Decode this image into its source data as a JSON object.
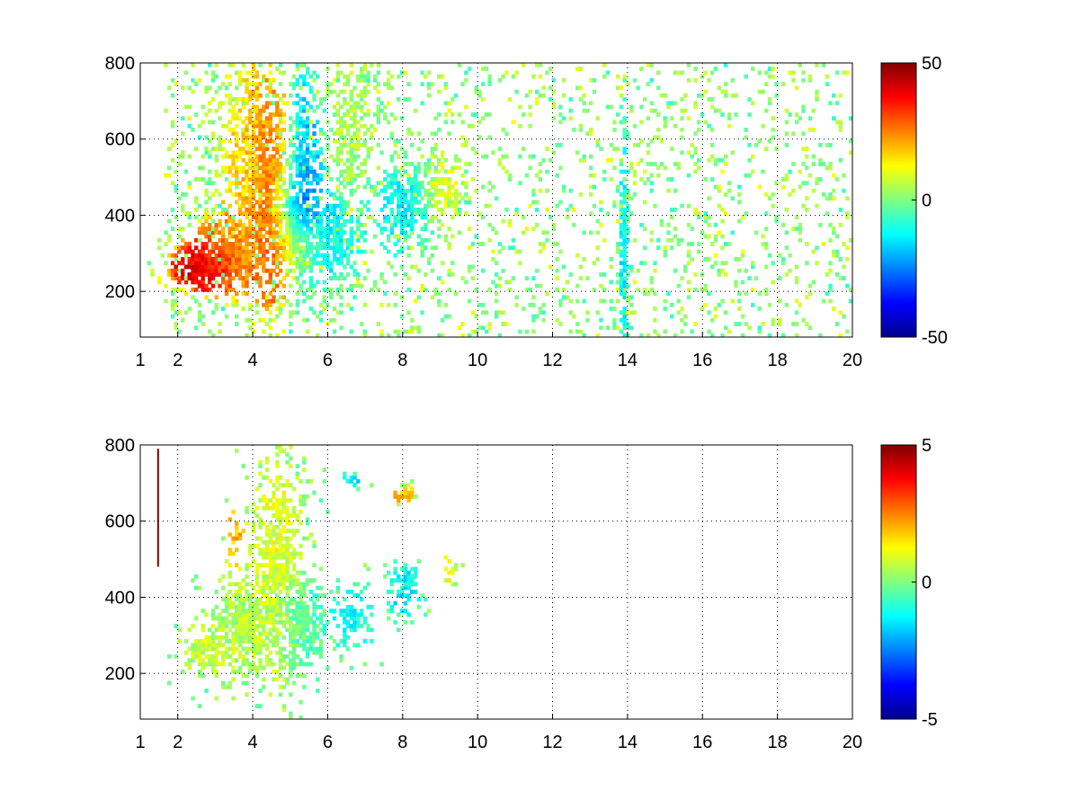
{
  "chart_data": [
    {
      "type": "heatmap",
      "title": "",
      "xlabel": "",
      "ylabel": "",
      "xlim": [
        1,
        20
      ],
      "ylim": [
        80,
        800
      ],
      "x_ticks": [
        1,
        2,
        4,
        6,
        8,
        10,
        12,
        14,
        16,
        18,
        20
      ],
      "x_tick_labels": [
        "1",
        "2",
        "4",
        "6",
        "8",
        "10",
        "12",
        "14",
        "16",
        "18",
        "20"
      ],
      "y_ticks": [
        200,
        400,
        600,
        800
      ],
      "y_tick_labels": [
        "200",
        "400",
        "600",
        "800"
      ],
      "grid": true,
      "colormap": "jet",
      "colorbar": {
        "min": -50,
        "max": 50,
        "tick_labels": [
          "50",
          "0",
          "-50"
        ],
        "ticks": [
          50,
          0,
          -50
        ]
      },
      "x_grid_lines": [
        2,
        4,
        6,
        8,
        10,
        12,
        14,
        16,
        18
      ],
      "blobs": [
        {
          "x": 2.6,
          "y": 260,
          "sx": 0.55,
          "sy": 40,
          "v": 45,
          "w": 1.0
        },
        {
          "x": 3.4,
          "y": 300,
          "sx": 0.7,
          "sy": 70,
          "v": 25,
          "w": 0.9
        },
        {
          "x": 4.0,
          "y": 520,
          "sx": 0.6,
          "sy": 200,
          "v": 15,
          "w": 0.7
        },
        {
          "x": 4.5,
          "y": 430,
          "sx": 0.35,
          "sy": 170,
          "v": 38,
          "w": 0.8
        },
        {
          "x": 4.9,
          "y": 320,
          "sx": 0.5,
          "sy": 50,
          "v": 40,
          "w": 0.9
        },
        {
          "x": 5.1,
          "y": 380,
          "sx": 0.4,
          "sy": 90,
          "v": -40,
          "w": 0.9
        },
        {
          "x": 5.3,
          "y": 560,
          "sx": 0.3,
          "sy": 140,
          "v": -20,
          "w": 0.7
        },
        {
          "x": 6.0,
          "y": 350,
          "sx": 0.6,
          "sy": 80,
          "v": -15,
          "w": 0.8
        },
        {
          "x": 6.6,
          "y": 620,
          "sx": 0.4,
          "sy": 150,
          "v": 5,
          "w": 0.5
        },
        {
          "x": 8.0,
          "y": 420,
          "sx": 0.5,
          "sy": 70,
          "v": -12,
          "w": 0.7
        },
        {
          "x": 9.0,
          "y": 460,
          "sx": 0.35,
          "sy": 60,
          "v": 10,
          "w": 0.6
        },
        {
          "x": 13.85,
          "y": 300,
          "sx": 0.08,
          "sy": 200,
          "v": -12,
          "w": 0.9
        }
      ],
      "noise": {
        "fill": 0.12,
        "x_from": 1,
        "x_to": 20,
        "spread": 12
      }
    },
    {
      "type": "heatmap",
      "title": "",
      "xlabel": "",
      "ylabel": "",
      "xlim": [
        1,
        20
      ],
      "ylim": [
        80,
        800
      ],
      "x_ticks": [
        1,
        2,
        4,
        6,
        8,
        10,
        12,
        14,
        16,
        18,
        20
      ],
      "x_tick_labels": [
        "1",
        "2",
        "4",
        "6",
        "8",
        "10",
        "12",
        "14",
        "16",
        "18",
        "20"
      ],
      "y_ticks": [
        200,
        400,
        600,
        800
      ],
      "y_tick_labels": [
        "200",
        "400",
        "600",
        "800"
      ],
      "grid": true,
      "colormap": "jet",
      "colorbar": {
        "min": -5,
        "max": 5,
        "tick_labels": [
          "5",
          "0",
          "-5"
        ],
        "ticks": [
          5,
          0,
          -5
        ]
      },
      "x_grid_lines": [
        2,
        4,
        6,
        8,
        10,
        12,
        14,
        16,
        18
      ],
      "blobs": [
        {
          "x": 2.8,
          "y": 260,
          "sx": 0.45,
          "sy": 40,
          "v": 0.6,
          "w": 0.9
        },
        {
          "x": 3.8,
          "y": 320,
          "sx": 0.6,
          "sy": 90,
          "v": 0.4,
          "w": 0.9
        },
        {
          "x": 4.6,
          "y": 470,
          "sx": 0.45,
          "sy": 190,
          "v": 1.0,
          "w": 0.8
        },
        {
          "x": 5.2,
          "y": 330,
          "sx": 0.45,
          "sy": 80,
          "v": -0.6,
          "w": 0.9
        },
        {
          "x": 6.6,
          "y": 340,
          "sx": 0.35,
          "sy": 60,
          "v": -1.1,
          "w": 0.6
        },
        {
          "x": 8.0,
          "y": 410,
          "sx": 0.3,
          "sy": 45,
          "v": -1.3,
          "w": 0.6
        },
        {
          "x": 9.2,
          "y": 470,
          "sx": 0.15,
          "sy": 30,
          "v": 1.0,
          "w": 0.4
        },
        {
          "x": 7.95,
          "y": 665,
          "sx": 0.2,
          "sy": 15,
          "v": 2.0,
          "w": 0.8
        },
        {
          "x": 6.6,
          "y": 700,
          "sx": 0.15,
          "sy": 12,
          "v": -1.5,
          "w": 0.6
        },
        {
          "x": 3.5,
          "y": 560,
          "sx": 0.15,
          "sy": 60,
          "v": 2.0,
          "w": 0.4
        }
      ],
      "streaks": [
        {
          "x": 1.45,
          "y0": 480,
          "y1": 790,
          "v": 5
        }
      ],
      "noise": {
        "fill": 0.0,
        "x_from": 1,
        "x_to": 20,
        "spread": 1
      }
    }
  ]
}
